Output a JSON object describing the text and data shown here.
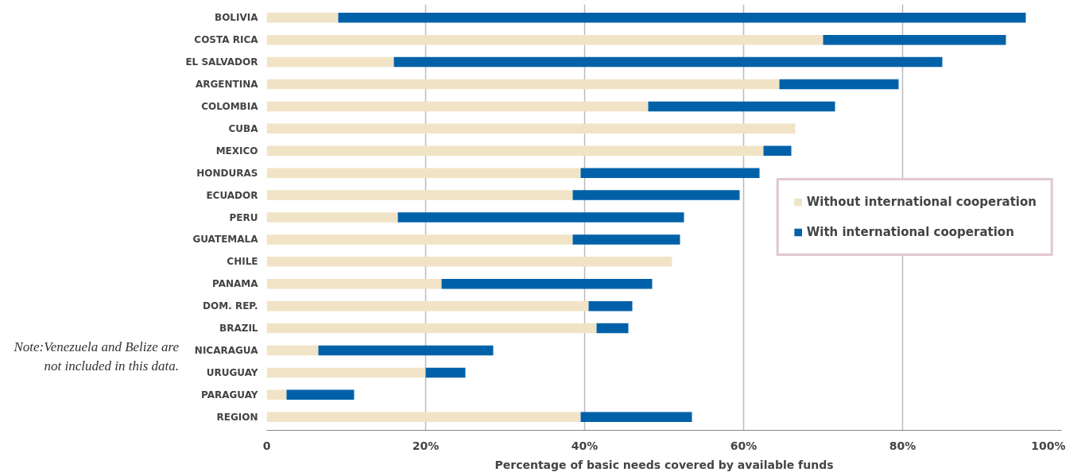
{
  "chart_data": {
    "type": "bar",
    "orientation": "horizontal",
    "stacked": true,
    "categories": [
      "BOLIVIA",
      "COSTA RICA",
      "EL SALVADOR",
      "ARGENTINA",
      "COLOMBIA",
      "CUBA",
      "MEXICO",
      "HONDURAS",
      "ECUADOR",
      "PERU",
      "GUATEMALA",
      "CHILE",
      "PANAMA",
      "DOM. REP.",
      "BRAZIL",
      "NICARAGUA",
      "URUGUAY",
      "PARAGUAY",
      "REGION"
    ],
    "series": [
      {
        "name": "Without international cooperation",
        "color": "#f1e4c6",
        "values": [
          9,
          70,
          16,
          64.5,
          48,
          66.5,
          62.5,
          39.5,
          38.5,
          16.5,
          38.5,
          51,
          22,
          40.5,
          41.5,
          6.5,
          20,
          2.5,
          39.5
        ]
      },
      {
        "name": "With international cooperation",
        "color": "#0061a9",
        "values": [
          86.5,
          23,
          69,
          15,
          23.5,
          0,
          3.5,
          22.5,
          21,
          36,
          13.5,
          0,
          26.5,
          5.5,
          4,
          22,
          5,
          8.5,
          14
        ]
      }
    ],
    "xlim": [
      0,
      100
    ],
    "xticks": [
      0,
      {
        "value": 20,
        "label": "20%"
      },
      {
        "value": 40,
        "label": "40%"
      },
      {
        "value": 60,
        "label": "60%"
      },
      {
        "value": 80,
        "label": "80%"
      },
      {
        "value": 100,
        "label": "100%"
      }
    ],
    "xlabel": "Percentage of basic needs covered by available funds",
    "grid": "x",
    "legend": "right",
    "annotations": [
      "Note:Venezuela and Belize are not included in this data."
    ]
  }
}
